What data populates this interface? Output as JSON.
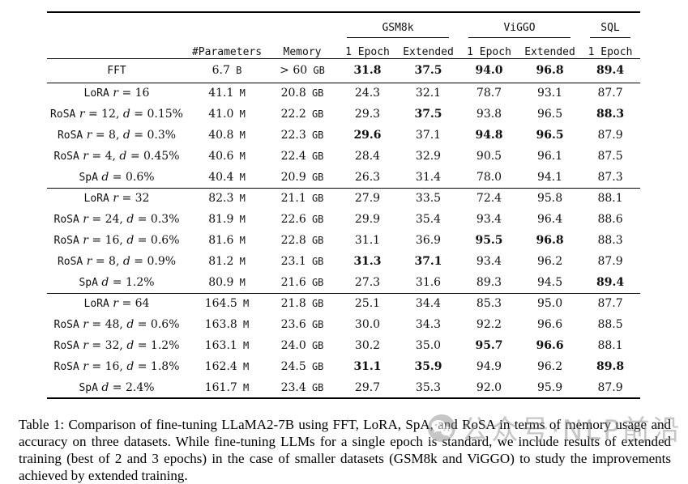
{
  "table": {
    "col_groups": [
      {
        "label": "",
        "span": 3
      },
      {
        "label": "GSM8k",
        "span": 2
      },
      {
        "label": "ViGGO",
        "span": 2
      },
      {
        "label": "SQL",
        "span": 1
      }
    ],
    "columns": [
      "",
      "#Parameters",
      "Memory",
      "1 Epoch",
      "Extended",
      "1 Epoch",
      "Extended",
      "1 Epoch"
    ],
    "blocks": [
      [
        {
          "method": "FFT",
          "math": "",
          "parameters": "6.7 B",
          "memory": "> 60 GB",
          "acc": [
            [
              "31.8",
              1
            ],
            [
              "37.5",
              1
            ],
            [
              "94.0",
              1
            ],
            [
              "96.8",
              1
            ],
            [
              "89.4",
              1
            ]
          ]
        }
      ],
      [
        {
          "method": "LoRA",
          "math": "r = 16",
          "parameters": "41.1 M",
          "memory": "20.8 GB",
          "acc": [
            [
              "24.3",
              0
            ],
            [
              "32.1",
              0
            ],
            [
              "78.7",
              0
            ],
            [
              "93.1",
              0
            ],
            [
              "87.7",
              0
            ]
          ]
        },
        {
          "method": "RoSA",
          "math": "r = 12, d = 0.15%",
          "parameters": "41.0 M",
          "memory": "22.2 GB",
          "acc": [
            [
              "29.3",
              0
            ],
            [
              "37.5",
              1
            ],
            [
              "93.8",
              0
            ],
            [
              "96.5",
              0
            ],
            [
              "88.3",
              1
            ]
          ]
        },
        {
          "method": "RoSA",
          "math": "r = 8, d = 0.3%",
          "parameters": "40.8 M",
          "memory": "22.3 GB",
          "acc": [
            [
              "29.6",
              1
            ],
            [
              "37.1",
              0
            ],
            [
              "94.8",
              1
            ],
            [
              "96.5",
              1
            ],
            [
              "87.9",
              0
            ]
          ]
        },
        {
          "method": "RoSA",
          "math": "r = 4, d = 0.45%",
          "parameters": "40.6 M",
          "memory": "22.4 GB",
          "acc": [
            [
              "28.4",
              0
            ],
            [
              "32.9",
              0
            ],
            [
              "90.5",
              0
            ],
            [
              "96.1",
              0
            ],
            [
              "87.5",
              0
            ]
          ]
        },
        {
          "method": "SpA",
          "math": "d = 0.6%",
          "parameters": "40.4 M",
          "memory": "20.9 GB",
          "acc": [
            [
              "26.3",
              0
            ],
            [
              "31.4",
              0
            ],
            [
              "78.0",
              0
            ],
            [
              "94.1",
              0
            ],
            [
              "87.3",
              0
            ]
          ]
        }
      ],
      [
        {
          "method": "LoRA",
          "math": "r = 32",
          "parameters": "82.3 M",
          "memory": "21.1 GB",
          "acc": [
            [
              "27.9",
              0
            ],
            [
              "33.5",
              0
            ],
            [
              "72.4",
              0
            ],
            [
              "95.8",
              0
            ],
            [
              "88.1",
              0
            ]
          ]
        },
        {
          "method": "RoSA",
          "math": "r = 24, d = 0.3%",
          "parameters": "81.9 M",
          "memory": "22.6 GB",
          "acc": [
            [
              "29.9",
              0
            ],
            [
              "35.4",
              0
            ],
            [
              "93.4",
              0
            ],
            [
              "96.4",
              0
            ],
            [
              "88.6",
              0
            ]
          ]
        },
        {
          "method": "RoSA",
          "math": "r = 16, d = 0.6%",
          "parameters": "81.6 M",
          "memory": "22.8 GB",
          "acc": [
            [
              "31.1",
              0
            ],
            [
              "36.9",
              0
            ],
            [
              "95.5",
              1
            ],
            [
              "96.8",
              1
            ],
            [
              "88.3",
              0
            ]
          ]
        },
        {
          "method": "RoSA",
          "math": "r = 8, d = 0.9%",
          "parameters": "81.2 M",
          "memory": "23.1 GB",
          "acc": [
            [
              "31.3",
              1
            ],
            [
              "37.1",
              1
            ],
            [
              "93.4",
              0
            ],
            [
              "96.2",
              0
            ],
            [
              "87.9",
              0
            ]
          ]
        },
        {
          "method": "SpA",
          "math": "d = 1.2%",
          "parameters": "80.9 M",
          "memory": "21.6 GB",
          "acc": [
            [
              "27.3",
              0
            ],
            [
              "31.6",
              0
            ],
            [
              "89.3",
              0
            ],
            [
              "94.5",
              0
            ],
            [
              "89.4",
              1
            ]
          ]
        }
      ],
      [
        {
          "method": "LoRA",
          "math": "r = 64",
          "parameters": "164.5 M",
          "memory": "21.8 GB",
          "acc": [
            [
              "25.1",
              0
            ],
            [
              "34.4",
              0
            ],
            [
              "85.3",
              0
            ],
            [
              "95.0",
              0
            ],
            [
              "87.7",
              0
            ]
          ]
        },
        {
          "method": "RoSA",
          "math": "r = 48, d = 0.6%",
          "parameters": "163.8 M",
          "memory": "23.6 GB",
          "acc": [
            [
              "30.0",
              0
            ],
            [
              "34.3",
              0
            ],
            [
              "92.2",
              0
            ],
            [
              "96.6",
              0
            ],
            [
              "88.5",
              0
            ]
          ]
        },
        {
          "method": "RoSA",
          "math": "r = 32, d = 1.2%",
          "parameters": "163.1 M",
          "memory": "24.0 GB",
          "acc": [
            [
              "30.2",
              0
            ],
            [
              "35.0",
              0
            ],
            [
              "95.7",
              1
            ],
            [
              "96.6",
              1
            ],
            [
              "88.1",
              0
            ]
          ]
        },
        {
          "method": "RoSA",
          "math": "r = 16, d = 1.8%",
          "parameters": "162.4 M",
          "memory": "24.5 GB",
          "acc": [
            [
              "31.1",
              1
            ],
            [
              "35.9",
              1
            ],
            [
              "94.9",
              0
            ],
            [
              "96.2",
              0
            ],
            [
              "89.8",
              1
            ]
          ]
        },
        {
          "method": "SpA",
          "math": "d = 2.4%",
          "parameters": "161.7 M",
          "memory": "23.4 GB",
          "acc": [
            [
              "29.7",
              0
            ],
            [
              "35.3",
              0
            ],
            [
              "92.0",
              0
            ],
            [
              "95.9",
              0
            ],
            [
              "87.9",
              0
            ]
          ]
        }
      ]
    ]
  },
  "caption": "Table 1: Comparison of fine-tuning LLaMA2-7B using FFT, LoRA, SpA, and RoSA in terms of memory usage and accuracy on three datasets. While fine-tuning LLMs for a single epoch is standard, we include results of extended training (best of 2 and 3 epochs) in the case of smaller datasets (GSM8k and ViGGO) to study the improvements achieved by extended training.",
  "watermark": {
    "text": "公众号·NLP前沿",
    "color": "#8f8f8f"
  }
}
